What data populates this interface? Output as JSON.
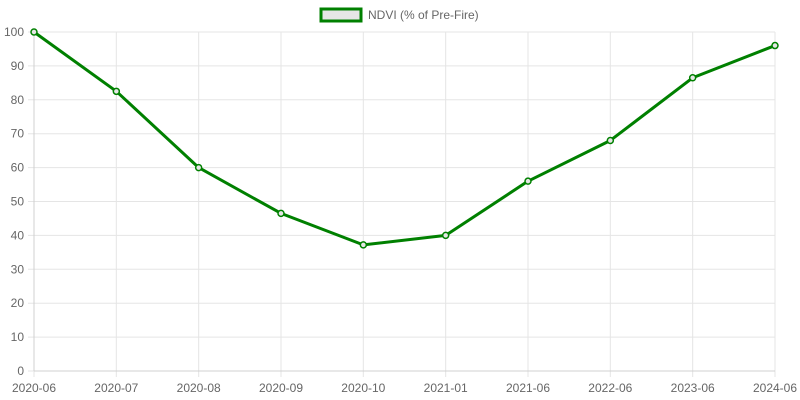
{
  "chart_data": {
    "type": "line",
    "categories": [
      "2020-06",
      "2020-07",
      "2020-08",
      "2020-09",
      "2020-10",
      "2021-01",
      "2021-06",
      "2022-06",
      "2023-06",
      "2024-06"
    ],
    "series": [
      {
        "name": "NDVI (% of Pre-Fire)",
        "values": [
          100,
          82.5,
          60,
          46.5,
          37.2,
          40,
          56,
          68,
          86.5,
          96
        ],
        "color": "#008000"
      }
    ],
    "ylim": [
      0,
      100
    ],
    "yticks": [
      0,
      10,
      20,
      30,
      40,
      50,
      60,
      70,
      80,
      90,
      100
    ],
    "grid": true,
    "legend_position": "top"
  }
}
